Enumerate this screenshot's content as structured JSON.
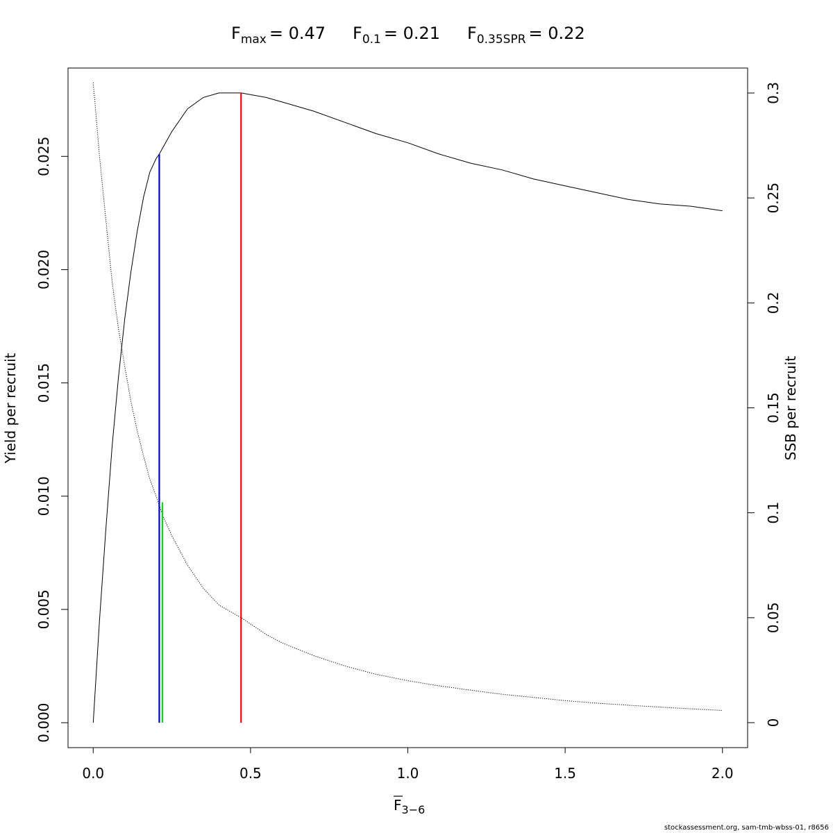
{
  "title": {
    "fmax": {
      "label": "F",
      "sub": "max",
      "value": "= 0.47"
    },
    "f01": {
      "label": "F",
      "sub": "0.1",
      "value": "= 0.21"
    },
    "fspr": {
      "label": "F",
      "sub": "0.35SPR",
      "value": "= 0.22"
    }
  },
  "footer": "stockassessment.org, sam-tmb-wbss-01, r8656",
  "chart_data": {
    "type": "line",
    "x_axis": {
      "label": "F",
      "label_sub": "3−6",
      "label_overline": true,
      "range": [
        -0.08,
        2.08
      ],
      "ticks": [
        0.0,
        0.5,
        1.0,
        1.5,
        2.0
      ],
      "tick_labels": [
        "0.0",
        "0.5",
        "1.0",
        "1.5",
        "2.0"
      ]
    },
    "y_axis_left": {
      "label": "Yield per recruit",
      "range": [
        -0.0011,
        0.0289
      ],
      "ticks": [
        0.0,
        0.005,
        0.01,
        0.015,
        0.02,
        0.025
      ],
      "tick_labels": [
        "0.000",
        "0.005",
        "0.010",
        "0.015",
        "0.020",
        "0.025"
      ]
    },
    "y_axis_right": {
      "label": "SSB per recruit",
      "range": [
        -0.0119,
        0.3119
      ],
      "ticks": [
        0,
        0.05,
        0.1,
        0.15,
        0.2,
        0.25,
        0.3
      ],
      "tick_labels": [
        "0",
        "0.05",
        "0.1",
        "0.15",
        "0.2",
        "0.25",
        "0.3"
      ]
    },
    "series": [
      {
        "axis": "left",
        "style": "solid",
        "color": "#000000",
        "x": [
          0,
          0.02,
          0.04,
          0.06,
          0.08,
          0.1,
          0.12,
          0.14,
          0.16,
          0.18,
          0.2,
          0.21,
          0.25,
          0.3,
          0.35,
          0.4,
          0.47,
          0.55,
          0.6,
          0.7,
          0.8,
          0.9,
          1.0,
          1.1,
          1.2,
          1.3,
          1.4,
          1.5,
          1.6,
          1.7,
          1.8,
          1.9,
          2.0
        ],
        "y": [
          0.0,
          0.0045,
          0.0085,
          0.0122,
          0.0152,
          0.0178,
          0.0199,
          0.0217,
          0.0232,
          0.0243,
          0.0249,
          0.0251,
          0.0261,
          0.0271,
          0.0276,
          0.0278,
          0.0278,
          0.0276,
          0.0274,
          0.027,
          0.0265,
          0.026,
          0.0256,
          0.0251,
          0.0247,
          0.0244,
          0.024,
          0.0237,
          0.0234,
          0.0231,
          0.0229,
          0.0228,
          0.0226
        ]
      },
      {
        "axis": "right",
        "style": "dotted",
        "color": "#000000",
        "x": [
          0,
          0.02,
          0.04,
          0.06,
          0.08,
          0.1,
          0.12,
          0.14,
          0.16,
          0.18,
          0.2,
          0.22,
          0.25,
          0.3,
          0.35,
          0.4,
          0.47,
          0.55,
          0.6,
          0.7,
          0.8,
          0.9,
          1.0,
          1.1,
          1.2,
          1.3,
          1.4,
          1.5,
          1.6,
          1.7,
          1.8,
          1.9,
          2.0
        ],
        "y": [
          0.305,
          0.27,
          0.24,
          0.21,
          0.188,
          0.17,
          0.153,
          0.139,
          0.127,
          0.116,
          0.108,
          0.099,
          0.089,
          0.075,
          0.064,
          0.056,
          0.05,
          0.042,
          0.038,
          0.032,
          0.027,
          0.023,
          0.02,
          0.0175,
          0.0155,
          0.0135,
          0.012,
          0.0105,
          0.0093,
          0.0083,
          0.0074,
          0.0066,
          0.0058
        ]
      }
    ],
    "reference_lines": [
      {
        "name": "F0.1",
        "x": 0.21,
        "color": "#0000cc",
        "axis": "left",
        "y_from": 0.0,
        "y_to": 0.0251
      },
      {
        "name": "F0.35SPR",
        "x": 0.22,
        "color": "#00dd00",
        "axis": "right",
        "y_from": 0.0,
        "y_to": 0.105
      },
      {
        "name": "Fmax",
        "x": 0.47,
        "color": "#ee0000",
        "axis": "left",
        "y_from": 0.0,
        "y_to": 0.0278
      }
    ],
    "grid": false,
    "legend": "none"
  }
}
